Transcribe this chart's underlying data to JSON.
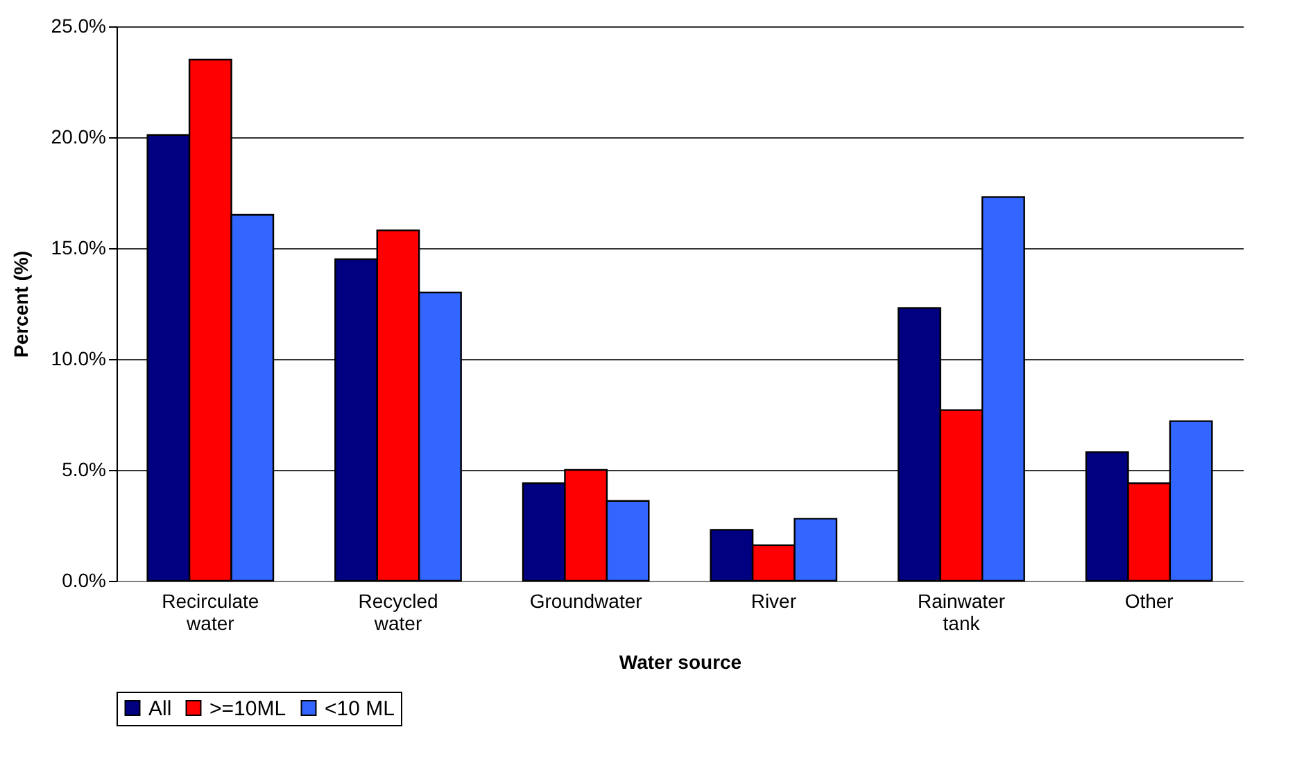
{
  "chart_data": {
    "type": "bar",
    "xlabel": "Water source",
    "ylabel": "Percent (%)",
    "categories": [
      "Recirculate water",
      "Recycled water",
      "Groundwater",
      "River",
      "Rainwater tank",
      "Other"
    ],
    "series": [
      {
        "name": "All",
        "color": "#000080",
        "values": [
          20.1,
          14.5,
          4.4,
          2.3,
          12.3,
          5.8
        ]
      },
      {
        "name": ">=10ML",
        "color": "#ff0000",
        "values": [
          23.5,
          15.8,
          5.0,
          1.6,
          7.7,
          4.4
        ]
      },
      {
        "name": "<10 ML",
        "color": "#3366ff",
        "values": [
          16.5,
          13.0,
          3.6,
          2.8,
          17.3,
          7.2
        ]
      }
    ],
    "ylim": [
      0,
      25
    ],
    "yticks": [
      {
        "value": 0,
        "label": "0.0%"
      },
      {
        "value": 5,
        "label": "5.0%"
      },
      {
        "value": 10,
        "label": "10.0%"
      },
      {
        "value": 15,
        "label": "15.0%"
      },
      {
        "value": 20,
        "label": "20.0%"
      },
      {
        "value": 25,
        "label": "25.0%"
      }
    ],
    "grid": "y",
    "legend": "bottom"
  }
}
